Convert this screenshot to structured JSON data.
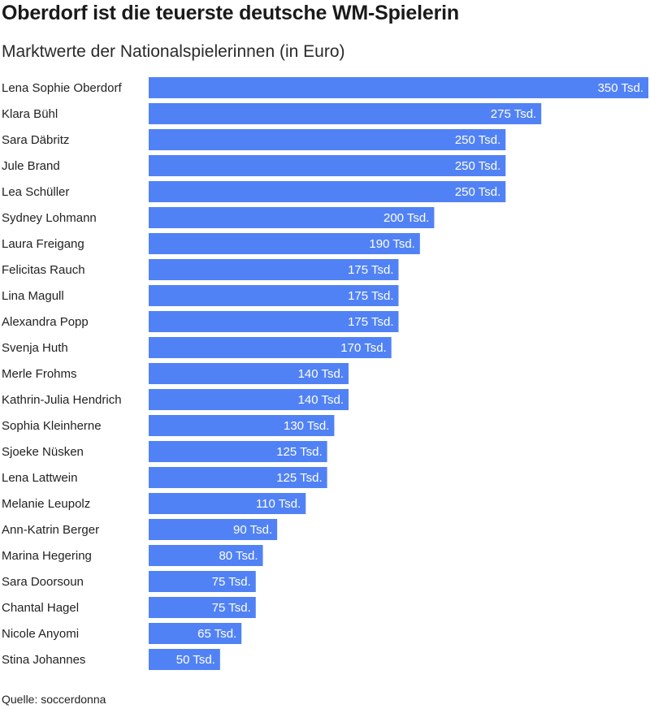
{
  "title": "Oberdorf ist die teuerste deutsche WM-Spielerin",
  "subtitle": "Marktwerte der Nationalspielerinnen (in Euro)",
  "source": "Quelle: soccerdonna",
  "bar_color": "#5182f5",
  "chart_data": {
    "type": "bar",
    "orientation": "horizontal",
    "categories": [
      "Lena Sophie Oberdorf",
      "Klara Bühl",
      "Sara Däbritz",
      "Jule Brand",
      "Lea Schüller",
      "Sydney Lohmann",
      "Laura Freigang",
      "Felicitas Rauch",
      "Lina Magull",
      "Alexandra Popp",
      "Svenja Huth",
      "Merle Frohms",
      "Kathrin-Julia Hendrich",
      "Sophia Kleinherne",
      "Sjoeke Nüsken",
      "Lena Lattwein",
      "Melanie Leupolz",
      "Ann-Katrin Berger",
      "Marina Hegering",
      "Sara Doorsoun",
      "Chantal Hagel",
      "Nicole Anyomi",
      "Stina Johannes"
    ],
    "values": [
      350,
      275,
      250,
      250,
      250,
      200,
      190,
      175,
      175,
      175,
      170,
      140,
      140,
      130,
      125,
      125,
      110,
      90,
      80,
      75,
      75,
      65,
      50
    ],
    "value_labels": [
      "350 Tsd.",
      "275 Tsd.",
      "250 Tsd.",
      "250 Tsd.",
      "250 Tsd.",
      "200 Tsd.",
      "190 Tsd.",
      "175 Tsd.",
      "175 Tsd.",
      "175 Tsd.",
      "170 Tsd.",
      "140 Tsd.",
      "140 Tsd.",
      "130 Tsd.",
      "125 Tsd.",
      "125 Tsd.",
      "110 Tsd.",
      "90 Tsd.",
      "80 Tsd.",
      "75 Tsd.",
      "75 Tsd.",
      "65 Tsd.",
      "50 Tsd."
    ],
    "xlim": [
      0,
      350
    ],
    "grid": false,
    "legend": "none"
  }
}
